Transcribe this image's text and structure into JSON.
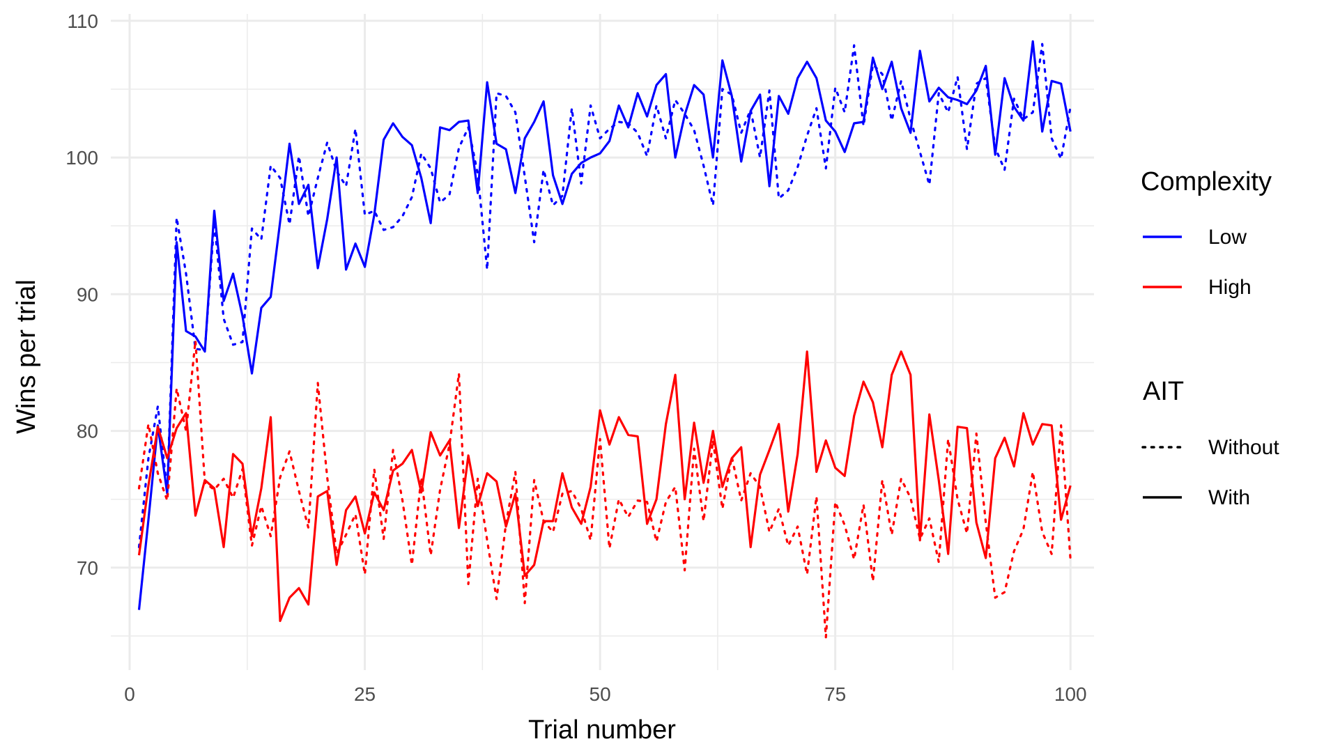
{
  "chart_data": {
    "type": "line",
    "xlabel": "Trial number",
    "ylabel": "Wins per trial",
    "xlim": [
      -2,
      102.5
    ],
    "ylim": [
      62.5,
      110.5
    ],
    "xticks": [
      0,
      25,
      50,
      75,
      100
    ],
    "yticks": [
      70,
      80,
      90,
      100,
      110
    ],
    "grid": true,
    "legend_position": "right",
    "legends": [
      {
        "title": "Complexity",
        "entries": [
          {
            "label": "Low",
            "color": "#0000ff",
            "linetype": "solid"
          },
          {
            "label": "High",
            "color": "#ff0000",
            "linetype": "solid"
          }
        ]
      },
      {
        "title": "AIT",
        "entries": [
          {
            "label": "Without",
            "color": "#000000",
            "linetype": "dotted"
          },
          {
            "label": "With",
            "color": "#000000",
            "linetype": "solid"
          }
        ]
      }
    ],
    "series": [
      {
        "complexity": "Low",
        "ait": "With",
        "color": "#0000ff",
        "linetype": "solid",
        "values": [
          66.9,
          73.5,
          80.4,
          75.4,
          93.8,
          87.3,
          86.9,
          85.8,
          96.1,
          89.5,
          91.5,
          88.4,
          84.2,
          89.0,
          89.8,
          95.3,
          101.0,
          96.6,
          98.0,
          91.9,
          95.5,
          100.0,
          91.8,
          93.7,
          92.0,
          95.8,
          101.3,
          102.5,
          101.5,
          100.9,
          98.5,
          95.2,
          102.2,
          102.0,
          102.6,
          102.7,
          97.4,
          105.5,
          101.0,
          100.6,
          97.4,
          101.4,
          102.6,
          104.1,
          98.7,
          96.6,
          98.8,
          99.6,
          100.0,
          100.3,
          101.2,
          103.8,
          102.2,
          104.7,
          103.0,
          105.3,
          106.1,
          100.0,
          103.1,
          105.3,
          104.6,
          100.0,
          107.1,
          104.5,
          99.7,
          103.4,
          104.6,
          97.9,
          104.5,
          103.2,
          105.8,
          107.0,
          105.8,
          102.7,
          101.9,
          100.4,
          102.5,
          102.6,
          107.3,
          105.0,
          107.0,
          103.6,
          101.8,
          107.8,
          104.1,
          105.1,
          104.4,
          104.2,
          103.9,
          104.9,
          106.7,
          100.2,
          105.8,
          103.7,
          102.7,
          108.5,
          101.9,
          105.6,
          105.4,
          101.9
        ]
      },
      {
        "complexity": "Low",
        "ait": "Without",
        "color": "#0000ff",
        "linetype": "dotted",
        "values": [
          71.5,
          78.0,
          81.8,
          75.6,
          95.6,
          91.5,
          86.0,
          85.9,
          95.3,
          88.2,
          86.3,
          86.5,
          94.8,
          94.0,
          99.4,
          98.5,
          95.1,
          100.1,
          95.7,
          98.5,
          101.1,
          99.0,
          97.9,
          102.1,
          95.8,
          96.1,
          94.7,
          94.9,
          95.7,
          97.1,
          100.3,
          99.2,
          96.7,
          97.3,
          100.7,
          102.2,
          98.8,
          91.8,
          104.7,
          104.5,
          103.3,
          98.6,
          93.8,
          99.1,
          96.5,
          97.2,
          103.6,
          98.1,
          103.8,
          101.4,
          102.1,
          102.6,
          102.5,
          101.8,
          100.1,
          103.8,
          101.4,
          104.2,
          103.2,
          102.0,
          99.4,
          96.5,
          105.0,
          104.6,
          101.8,
          103.5,
          100.0,
          104.9,
          97.0,
          97.6,
          99.3,
          101.6,
          103.6,
          99.2,
          105.1,
          103.3,
          108.2,
          102.3,
          106.8,
          106.1,
          102.7,
          105.6,
          102.8,
          100.4,
          98.0,
          104.7,
          103.3,
          105.9,
          100.6,
          105.4,
          105.8,
          100.7,
          99.1,
          104.3,
          102.8,
          103.3,
          108.3,
          101.4,
          99.9,
          103.7
        ]
      },
      {
        "complexity": "High",
        "ait": "With",
        "color": "#ff0000",
        "linetype": "solid",
        "values": [
          70.9,
          76.0,
          80.3,
          78.0,
          80.2,
          81.3,
          73.8,
          76.4,
          75.8,
          71.5,
          78.3,
          77.6,
          72.3,
          75.8,
          81.0,
          66.1,
          67.8,
          68.5,
          67.3,
          75.2,
          75.6,
          70.2,
          74.2,
          75.2,
          72.5,
          75.5,
          74.2,
          77.1,
          77.6,
          78.6,
          75.5,
          79.9,
          78.2,
          79.3,
          72.9,
          78.2,
          74.5,
          76.9,
          76.3,
          73.0,
          75.4,
          69.4,
          70.2,
          73.4,
          73.4,
          76.9,
          74.4,
          73.2,
          75.9,
          81.5,
          79.0,
          81.0,
          79.7,
          79.6,
          73.2,
          75.0,
          80.5,
          84.1,
          75.0,
          80.6,
          76.2,
          80.0,
          75.9,
          78.0,
          78.8,
          71.5,
          76.8,
          78.6,
          80.5,
          74.1,
          78.3,
          85.8,
          77.0,
          79.3,
          77.3,
          76.7,
          81.1,
          83.6,
          82.1,
          78.8,
          84.1,
          85.8,
          84.1,
          72.0,
          81.2,
          76.4,
          71.0,
          80.3,
          80.2,
          73.3,
          70.7,
          78.0,
          79.5,
          77.4,
          81.3,
          79.0,
          80.5,
          80.4,
          73.5,
          76.0
        ]
      },
      {
        "complexity": "High",
        "ait": "Without",
        "color": "#ff0000",
        "linetype": "dotted",
        "values": [
          75.8,
          80.5,
          76.9,
          74.9,
          83.1,
          80.0,
          86.6,
          76.2,
          75.7,
          76.5,
          75.1,
          77.2,
          71.6,
          74.5,
          72.3,
          76.6,
          78.5,
          75.6,
          72.9,
          83.5,
          76.6,
          71.0,
          72.4,
          73.9,
          69.5,
          77.2,
          72.1,
          78.6,
          74.9,
          70.2,
          76.6,
          70.9,
          75.7,
          79.0,
          84.2,
          68.8,
          76.5,
          72.0,
          67.7,
          73.2,
          77.0,
          67.4,
          76.4,
          73.4,
          72.6,
          75.4,
          75.6,
          74.3,
          72.0,
          79.4,
          71.4,
          75.0,
          73.7,
          74.9,
          74.8,
          71.9,
          74.8,
          75.9,
          69.8,
          78.7,
          73.4,
          79.3,
          74.3,
          78.1,
          74.9,
          76.9,
          75.9,
          72.6,
          74.3,
          71.6,
          73.0,
          69.5,
          75.2,
          64.9,
          74.8,
          73.1,
          70.6,
          74.6,
          69.0,
          76.4,
          72.4,
          76.5,
          75.1,
          72.1,
          73.6,
          70.4,
          79.4,
          75.0,
          72.5,
          79.8,
          73.3,
          67.8,
          68.2,
          71.2,
          72.8,
          77.0,
          72.6,
          71.0,
          80.4,
          70.6
        ]
      }
    ]
  }
}
